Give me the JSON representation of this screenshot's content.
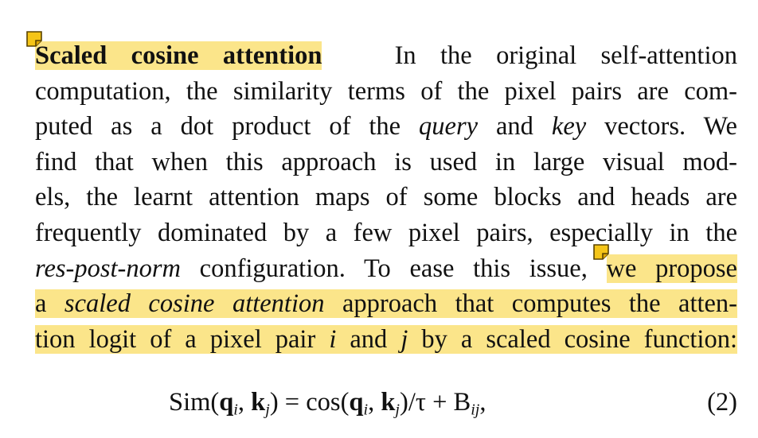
{
  "paragraph": {
    "heading": "Scaled cosine attention",
    "lines": [
      {
        "pre": "",
        "text": "In the original self-attention"
      },
      {
        "text": "computation, the similarity terms of the pixel pairs are com-"
      },
      {
        "a": "puted as a dot product of the ",
        "i1": "query",
        "b": " and ",
        "i2": "key",
        "c": " vectors.  We"
      },
      {
        "text": "find that when this approach is used in large visual mod-"
      },
      {
        "text": "els, the learnt attention maps of some blocks and heads are"
      },
      {
        "text": "frequently dominated by a few pixel pairs, especially in the"
      },
      {
        "i1": "res-post-norm",
        "a": " configuration. To ease this issue, ",
        "hl": "we propose"
      },
      {
        "a": "a ",
        "i1": "scaled cosine attention",
        "b": " approach that computes the atten-"
      },
      {
        "a": "tion logit of a pixel pair ",
        "i1": "i",
        "b": " and ",
        "i2": "j",
        "c": " by a scaled cosine function:"
      }
    ]
  },
  "equation": {
    "sim": "Sim(",
    "q": "q",
    "qi": "i",
    "comma": ", ",
    "k": "k",
    "kj": "j",
    "eq": ") = cos(",
    "tail": ")/τ + B",
    "bij": "ij",
    "end": ",",
    "number": "(2)"
  },
  "icons": {
    "note1": "sticky-note-icon",
    "note2": "sticky-note-icon"
  },
  "colors": {
    "highlight": "#fbe58a",
    "note_fill": "#f5c518",
    "note_stroke": "#5a4300"
  }
}
